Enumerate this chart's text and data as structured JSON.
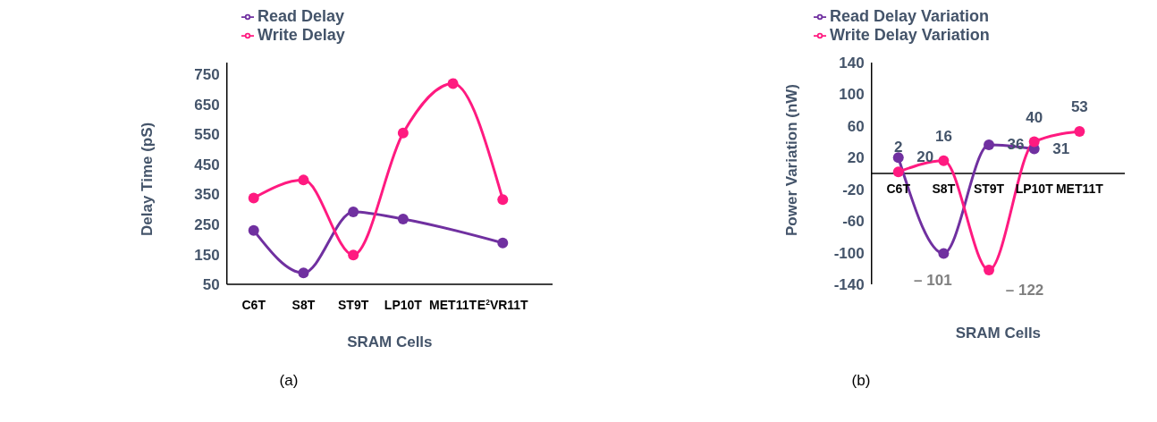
{
  "chart_data": [
    {
      "type": "line",
      "xlabel": "SRAM Cells",
      "ylabel": "Delay Time (pS)",
      "categories": [
        "C6T",
        "S8T",
        "ST9T",
        "LP10T",
        "MET11T",
        "E$^{2}$VR11T",
        null
      ],
      "series": [
        {
          "name": "Read Delay",
          "color": "#7030a0",
          "values": [
            230,
            88,
            292,
            268,
            null,
            188,
            null
          ]
        },
        {
          "name": "Write Delay",
          "color": "#ff1a80",
          "values": [
            338,
            398,
            148,
            555,
            720,
            333,
            null
          ]
        }
      ],
      "ylim": [
        50,
        790
      ],
      "yticks": [
        50,
        150,
        250,
        350,
        450,
        550,
        650,
        750
      ],
      "grid": false,
      "legend": "top left",
      "marker": "circle",
      "annotations": [
        "(a)"
      ]
    },
    {
      "type": "line",
      "xlabel": "SRAM Cells",
      "ylabel": "Power Variation (nW)",
      "categories": [
        "C6T",
        "S8T",
        "ST9T",
        "LP10T",
        "MET11T",
        null
      ],
      "series": [
        {
          "name": "Read Delay Variation",
          "color": "#7030a0",
          "values": [
            20,
            -101,
            36,
            31,
            null,
            null
          ],
          "value_labels": [
            "20",
            "– 101",
            "36",
            "31",
            null,
            null
          ]
        },
        {
          "name": "Write Delay Variation",
          "color": "#ff1a80",
          "values": [
            2,
            16,
            -122,
            40,
            53,
            null
          ],
          "value_labels": [
            "2",
            "16",
            "– 122",
            "40",
            "53",
            null
          ]
        }
      ],
      "ylim": [
        -140,
        140
      ],
      "yticks": [
        -140,
        -100,
        -60,
        -20,
        20,
        60,
        100,
        140
      ],
      "grid": false,
      "legend": "top left",
      "marker": "circle",
      "annotations": [
        "(b)"
      ]
    }
  ]
}
